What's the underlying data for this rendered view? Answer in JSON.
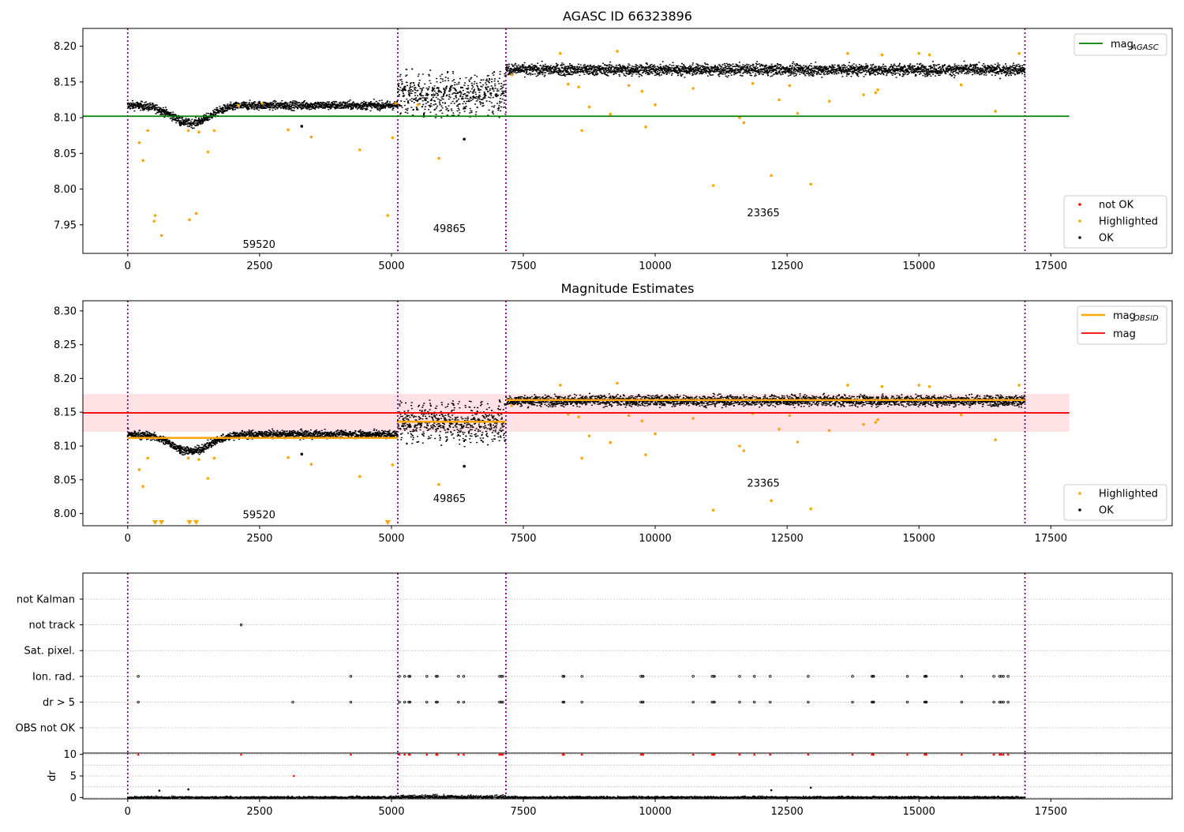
{
  "figure": {
    "panel1_title": "AGASC ID 66323896",
    "panel2_title": "Magnitude Estimates"
  },
  "colors": {
    "ok": "#000000",
    "highlighted": "#ffa500",
    "not_ok": "#ff0000",
    "mag_agasc": "#008000",
    "mag": "#ff0000",
    "mag_obsid": "#ffa500",
    "obsid_boundary": "#800080",
    "mag_band": "#ffb6c1"
  },
  "chart_data": [
    {
      "type": "scatter",
      "title": "AGASC ID 66323896",
      "xlim": [
        -850,
        19800
      ],
      "ylim": [
        7.91,
        8.225
      ],
      "xticks": [
        0,
        2500,
        5000,
        7500,
        10000,
        12500,
        15000,
        17500
      ],
      "xtick_labels": [
        "0",
        "2500",
        "5000",
        "7500",
        "10000",
        "12500",
        "15000",
        "17500"
      ],
      "yticks": [
        7.95,
        8.0,
        8.05,
        8.1,
        8.15,
        8.2
      ],
      "ytick_labels": [
        "7.95",
        "8.00",
        "8.05",
        "8.10",
        "8.15",
        "8.20"
      ],
      "grid": false,
      "obsid_boundaries": [
        0,
        5120,
        7170,
        17010
      ],
      "obsid_labels": [
        {
          "text": "59520",
          "x": 2540,
          "y": 7.918
        },
        {
          "text": "49865",
          "x": 6150,
          "y": 7.94
        },
        {
          "text": "23365",
          "x": 12100,
          "y": 7.962
        }
      ],
      "lines": [
        {
          "name": "mag_AGASC",
          "y": 8.102,
          "x_range": [
            -850,
            17850
          ]
        }
      ],
      "ok_bands": [
        {
          "x_start": 0,
          "x_end": 5120,
          "shape": "dip",
          "base": 8.118,
          "dip_center": 1200,
          "dip_depth": 0.025,
          "noise": 0.008
        },
        {
          "x_start": 5120,
          "x_end": 7170,
          "shape": "bursts",
          "center": 8.135,
          "amplitude": 0.035
        },
        {
          "x_start": 7170,
          "x_end": 17010,
          "shape": "flat",
          "center": 8.168,
          "noise": 0.009
        }
      ],
      "ok_outliers": [
        [
          1000,
          8.09
        ],
        [
          3300,
          8.088
        ],
        [
          6380,
          8.07
        ]
      ],
      "highlighted_points": [
        [
          220,
          8.065
        ],
        [
          290,
          8.04
        ],
        [
          380,
          8.082
        ],
        [
          500,
          7.955
        ],
        [
          520,
          7.963
        ],
        [
          640,
          7.935
        ],
        [
          1170,
          7.957
        ],
        [
          1300,
          7.966
        ],
        [
          1520,
          8.052
        ],
        [
          3040,
          8.083
        ],
        [
          3480,
          8.073
        ],
        [
          4400,
          8.055
        ],
        [
          4930,
          7.963
        ],
        [
          5020,
          8.072
        ],
        [
          5080,
          8.12
        ],
        [
          5900,
          8.043
        ],
        [
          7280,
          8.16
        ],
        [
          8610,
          8.082
        ],
        [
          8750,
          8.115
        ],
        [
          9150,
          8.105
        ],
        [
          9280,
          8.193
        ],
        [
          9750,
          8.137
        ],
        [
          9820,
          8.087
        ],
        [
          10000,
          8.118
        ],
        [
          10720,
          8.141
        ],
        [
          11100,
          8.005
        ],
        [
          11600,
          8.1
        ],
        [
          11680,
          8.093
        ],
        [
          12200,
          8.019
        ],
        [
          12350,
          8.125
        ],
        [
          12700,
          8.106
        ],
        [
          12950,
          8.007
        ],
        [
          13300,
          8.123
        ],
        [
          13650,
          8.19
        ],
        [
          13950,
          8.132
        ],
        [
          14180,
          8.135
        ],
        [
          14220,
          8.139
        ],
        [
          14300,
          8.188
        ],
        [
          15000,
          8.19
        ],
        [
          15200,
          8.188
        ],
        [
          16450,
          8.109
        ],
        [
          16900,
          8.19
        ],
        [
          8350,
          8.147
        ],
        [
          8550,
          8.143
        ],
        [
          9500,
          8.145
        ],
        [
          11850,
          8.148
        ],
        [
          12550,
          8.145
        ],
        [
          15800,
          8.146
        ],
        [
          2100,
          8.117
        ],
        [
          1350,
          8.08
        ],
        [
          1150,
          8.082
        ],
        [
          1640,
          8.082
        ],
        [
          2550,
          8.12
        ],
        [
          5500,
          8.118
        ],
        [
          8200,
          8.19
        ]
      ],
      "legend_lines": [
        {
          "label": "mag",
          "sub": "AGASC"
        }
      ],
      "legend_points": [
        "not OK",
        "Highlighted",
        "OK"
      ]
    },
    {
      "type": "scatter",
      "title": "Magnitude Estimates",
      "xlim": [
        -850,
        19800
      ],
      "ylim": [
        7.982,
        8.315
      ],
      "xticks": [
        0,
        2500,
        5000,
        7500,
        10000,
        12500,
        15000,
        17500
      ],
      "xtick_labels": [
        "0",
        "2500",
        "5000",
        "7500",
        "10000",
        "12500",
        "15000",
        "17500"
      ],
      "yticks": [
        8.0,
        8.05,
        8.1,
        8.15,
        8.2,
        8.25,
        8.3
      ],
      "ytick_labels": [
        "8.00",
        "8.05",
        "8.10",
        "8.15",
        "8.20",
        "8.25",
        "8.30"
      ],
      "grid": false,
      "obsid_boundaries": [
        0,
        5120,
        7170,
        17010
      ],
      "obsid_labels": [
        {
          "text": "59520",
          "x": 2540,
          "y": 7.993
        },
        {
          "text": "49865",
          "x": 6150,
          "y": 8.017
        },
        {
          "text": "23365",
          "x": 12100,
          "y": 8.04
        }
      ],
      "lines": [
        {
          "name": "mag",
          "y": 8.149,
          "x_range": [
            -850,
            17850
          ],
          "band": [
            8.121,
            8.177
          ]
        }
      ],
      "obsid_mags": [
        {
          "x_start": 0,
          "x_end": 5120,
          "y": 8.112
        },
        {
          "x_start": 5120,
          "x_end": 7170,
          "y": 8.136
        },
        {
          "x_start": 7170,
          "x_end": 17010,
          "y": 8.168
        }
      ],
      "ok_bands": [
        {
          "x_start": 0,
          "x_end": 5120,
          "shape": "dip",
          "base": 8.118,
          "dip_center": 1200,
          "dip_depth": 0.025,
          "noise": 0.008
        },
        {
          "x_start": 5120,
          "x_end": 7170,
          "shape": "bursts",
          "center": 8.135,
          "amplitude": 0.035
        },
        {
          "x_start": 7170,
          "x_end": 17010,
          "shape": "flat",
          "center": 8.168,
          "noise": 0.009
        }
      ],
      "ok_outliers": [
        [
          1000,
          8.09
        ],
        [
          3300,
          8.088
        ],
        [
          6380,
          8.07
        ]
      ],
      "highlighted_points": [
        [
          220,
          8.065
        ],
        [
          290,
          8.04
        ],
        [
          380,
          8.082
        ],
        [
          1520,
          8.052
        ],
        [
          3040,
          8.083
        ],
        [
          3480,
          8.073
        ],
        [
          4400,
          8.055
        ],
        [
          5020,
          8.072
        ],
        [
          5900,
          8.043
        ],
        [
          7280,
          8.16
        ],
        [
          8610,
          8.082
        ],
        [
          8750,
          8.115
        ],
        [
          9150,
          8.105
        ],
        [
          9280,
          8.193
        ],
        [
          9750,
          8.137
        ],
        [
          9820,
          8.087
        ],
        [
          10000,
          8.118
        ],
        [
          10720,
          8.141
        ],
        [
          11100,
          8.005
        ],
        [
          11600,
          8.1
        ],
        [
          11680,
          8.093
        ],
        [
          12200,
          8.019
        ],
        [
          12350,
          8.125
        ],
        [
          12700,
          8.106
        ],
        [
          12950,
          8.007
        ],
        [
          13300,
          8.123
        ],
        [
          13650,
          8.19
        ],
        [
          13950,
          8.132
        ],
        [
          14180,
          8.135
        ],
        [
          14220,
          8.139
        ],
        [
          14300,
          8.188
        ],
        [
          15000,
          8.19
        ],
        [
          15200,
          8.188
        ],
        [
          16450,
          8.109
        ],
        [
          16900,
          8.19
        ],
        [
          8350,
          8.147
        ],
        [
          8550,
          8.143
        ],
        [
          9500,
          8.145
        ],
        [
          11850,
          8.148
        ],
        [
          12550,
          8.145
        ],
        [
          15800,
          8.146
        ],
        [
          1350,
          8.08
        ],
        [
          1150,
          8.082
        ],
        [
          1640,
          8.082
        ],
        [
          8200,
          8.19
        ]
      ],
      "offscale_low_points_x": [
        520,
        640,
        1170,
        1300,
        4930
      ],
      "legend_lines": [
        {
          "label": "mag",
          "sub": "OBSID"
        },
        {
          "label": "mag",
          "sub": ""
        }
      ],
      "legend_points": [
        "Highlighted",
        "OK"
      ]
    },
    {
      "type": "scatter",
      "title": "",
      "xlim": [
        -850,
        19800
      ],
      "xticks": [
        0,
        2500,
        5000,
        7500,
        10000,
        12500,
        15000,
        17500
      ],
      "xtick_labels": [
        "0",
        "2500",
        "5000",
        "7500",
        "10000",
        "12500",
        "15000",
        "17500"
      ],
      "grid": true,
      "obsid_boundaries": [
        0,
        5120,
        7170,
        17010
      ],
      "flag_rows": [
        "not Kalman",
        "not track",
        "Sat. pixel.",
        "Ion. rad.",
        "dr > 5",
        "OBS not OK"
      ],
      "flags": [
        {
          "row": "not track",
          "x": [
            2150
          ]
        },
        {
          "row": "Ion. rad.",
          "x": [
            200,
            4230,
            5150,
            5250,
            5330,
            5350,
            5670,
            5850,
            5870,
            6270,
            6370,
            7050,
            7080,
            7110,
            8250,
            8270,
            8610,
            9730,
            9760,
            9770,
            10720,
            11080,
            11110,
            11120,
            11600,
            11880,
            12180,
            12900,
            13740,
            14110,
            14130,
            14140,
            14780,
            15110,
            15130,
            15140,
            15810,
            16420,
            16530,
            16560,
            16600,
            16690
          ]
        },
        {
          "row": "dr > 5",
          "x": [
            200,
            3130,
            4230,
            5150,
            5250,
            5330,
            5350,
            5670,
            5850,
            5870,
            6270,
            6370,
            7050,
            7080,
            7110,
            8250,
            8270,
            8610,
            9730,
            9760,
            9770,
            10720,
            11080,
            11110,
            11120,
            11600,
            11880,
            12180,
            12900,
            13740,
            14110,
            14130,
            14140,
            14780,
            15110,
            15130,
            15140,
            15810,
            16420,
            16530,
            16560,
            16600,
            16690
          ]
        }
      ]
    },
    {
      "type": "scatter",
      "title": "",
      "ylabel": "dr",
      "xlim": [
        -850,
        19800
      ],
      "ylim": [
        -0.3,
        10.3
      ],
      "xticks": [
        0,
        2500,
        5000,
        7500,
        10000,
        12500,
        15000,
        17500
      ],
      "xtick_labels": [
        "0",
        "2500",
        "5000",
        "7500",
        "10000",
        "12500",
        "15000",
        "17500"
      ],
      "yticks": [
        0,
        5,
        10
      ],
      "ytick_labels": [
        "0",
        "5",
        "10"
      ],
      "grid": true,
      "obsid_boundaries": [
        0,
        5120,
        7170,
        17010
      ],
      "clipped_points_x": [
        200,
        2150,
        4230,
        5150,
        5250,
        5330,
        5350,
        5670,
        5850,
        5870,
        6270,
        6370,
        7050,
        7080,
        7110,
        8250,
        8270,
        8610,
        9730,
        9760,
        9770,
        10720,
        11080,
        11110,
        11120,
        11600,
        11880,
        12180,
        12900,
        13740,
        14110,
        14130,
        14140,
        14780,
        15110,
        15130,
        15140,
        15810,
        16420,
        16530,
        16560,
        16600,
        16690
      ],
      "scattered_points": [
        [
          3150,
          5.0
        ],
        [
          12200,
          1.7
        ],
        [
          12950,
          2.3
        ],
        [
          1150,
          1.9
        ],
        [
          600,
          1.6
        ]
      ]
    }
  ]
}
